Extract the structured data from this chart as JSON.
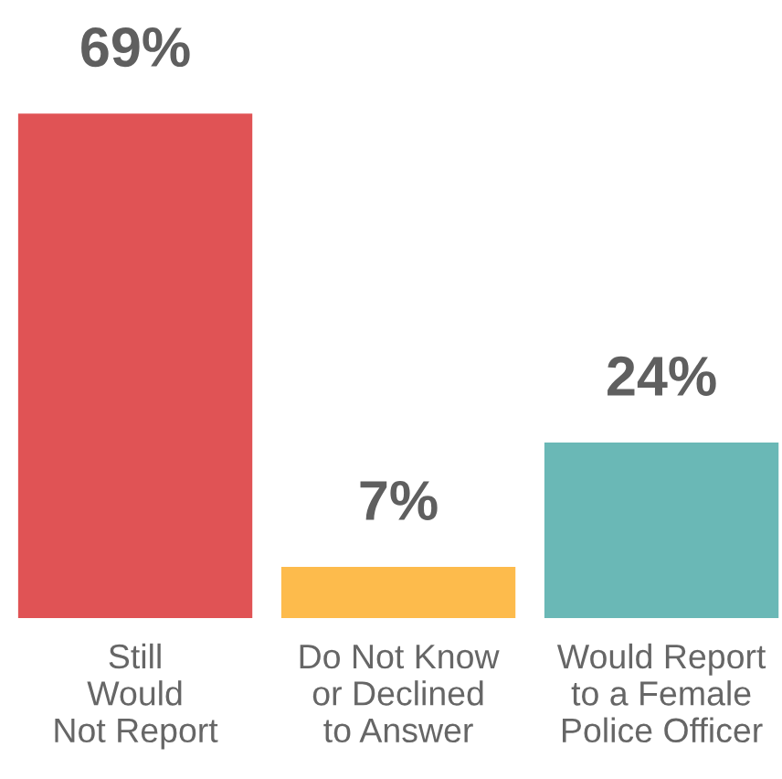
{
  "chart_data": {
    "type": "bar",
    "categories": [
      "Still\nWould\nNot Report",
      "Do Not Know\nor Declined\nto Answer",
      "Would Report\nto a Female\nPolice Officer"
    ],
    "values": [
      69,
      7,
      24
    ],
    "value_labels": [
      "69%",
      "7%",
      "24%"
    ],
    "colors": [
      "#e05355",
      "#fdbb4c",
      "#6ab8b6"
    ]
  }
}
